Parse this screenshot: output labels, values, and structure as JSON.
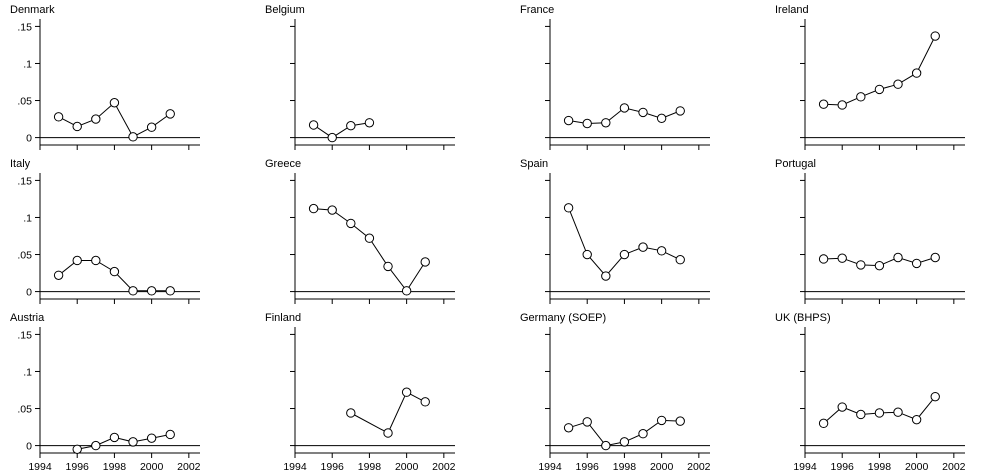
{
  "chart_data": {
    "type": "scatter",
    "title": "",
    "xlabel": "",
    "ylabel": "",
    "xlim": [
      1994,
      2002.6
    ],
    "ylim": [
      -0.01,
      0.16
    ],
    "x_ticks": [
      "1994",
      "1996",
      "1998",
      "2000",
      "2002"
    ],
    "y_ticks": [
      {
        "value": 0.15,
        "label": ".15"
      },
      {
        "value": 0.1,
        "label": ".1"
      },
      {
        "value": 0.05,
        "label": ".05"
      },
      {
        "value": 0,
        "label": "0"
      }
    ],
    "reference_line": 0,
    "marker": "hollow-circle",
    "connected": true,
    "panels": [
      {
        "name": "Denmark",
        "x": [
          1995,
          1996,
          1997,
          1998,
          1999,
          2000,
          2001
        ],
        "y": [
          0.028,
          0.015,
          0.025,
          0.047,
          0.001,
          0.014,
          0.032
        ]
      },
      {
        "name": "Belgium",
        "x": [
          1995,
          1996,
          1997,
          1998
        ],
        "y": [
          0.017,
          0.0,
          0.016,
          0.02
        ]
      },
      {
        "name": "France",
        "x": [
          1995,
          1996,
          1997,
          1998,
          1999,
          2000,
          2001
        ],
        "y": [
          0.023,
          0.019,
          0.02,
          0.04,
          0.034,
          0.026,
          0.036
        ]
      },
      {
        "name": "Ireland",
        "x": [
          1995,
          1996,
          1997,
          1998,
          1999,
          2000,
          2001
        ],
        "y": [
          0.045,
          0.044,
          0.055,
          0.065,
          0.072,
          0.087,
          0.137
        ]
      },
      {
        "name": "Italy",
        "x": [
          1995,
          1996,
          1997,
          1998,
          1999,
          2000,
          2001
        ],
        "y": [
          0.022,
          0.042,
          0.042,
          0.027,
          0.001,
          0.001,
          0.001
        ]
      },
      {
        "name": "Greece",
        "x": [
          1995,
          1996,
          1997,
          1998,
          1999,
          2000,
          2001
        ],
        "y": [
          0.112,
          0.11,
          0.092,
          0.072,
          0.034,
          0.001,
          0.04
        ]
      },
      {
        "name": "Spain",
        "x": [
          1995,
          1996,
          1997,
          1998,
          1999,
          2000,
          2001
        ],
        "y": [
          0.113,
          0.05,
          0.021,
          0.05,
          0.06,
          0.055,
          0.043
        ]
      },
      {
        "name": "Portugal",
        "x": [
          1995,
          1996,
          1997,
          1998,
          1999,
          2000,
          2001
        ],
        "y": [
          0.044,
          0.045,
          0.036,
          0.035,
          0.046,
          0.038,
          0.046
        ]
      },
      {
        "name": "Austria",
        "x": [
          1996,
          1997,
          1998,
          1999,
          2000,
          2001
        ],
        "y": [
          -0.005,
          0.0,
          0.011,
          0.005,
          0.01,
          0.015
        ]
      },
      {
        "name": "Finland",
        "x": [
          1997,
          1999,
          2000,
          2001
        ],
        "y": [
          0.044,
          0.017,
          0.072,
          0.059
        ]
      },
      {
        "name": "Germany (SOEP)",
        "x": [
          1995,
          1996,
          1997,
          1998,
          1999,
          2000,
          2001
        ],
        "y": [
          0.024,
          0.032,
          0.0,
          0.005,
          0.016,
          0.034,
          0.033
        ]
      },
      {
        "name": "UK (BHPS)",
        "x": [
          1995,
          1996,
          1997,
          1998,
          1999,
          2000,
          2001
        ],
        "y": [
          0.03,
          0.052,
          0.042,
          0.044,
          0.045,
          0.035,
          0.066
        ]
      }
    ]
  }
}
